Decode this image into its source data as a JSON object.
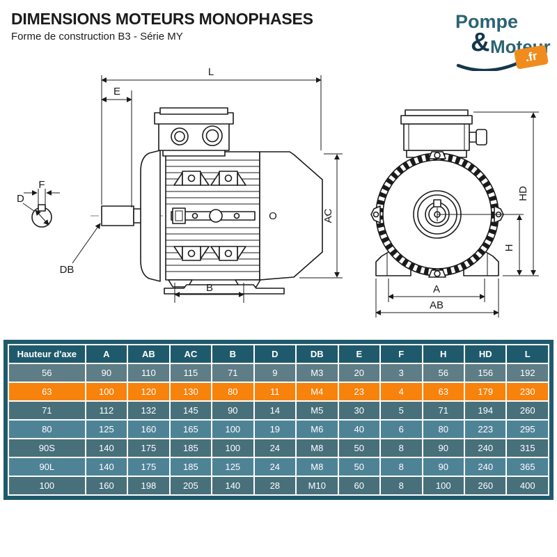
{
  "page": {
    "title": "DIMENSIONS MOTEURS MONOPHASES",
    "subtitle": "Forme de construction B3 - Série MY"
  },
  "logo": {
    "word1": "Pompe",
    "ampersand": "&",
    "word2": "Moteur",
    "tld": ".fr"
  },
  "side_view": {
    "labels": {
      "L": "L",
      "E": "E",
      "F": "F",
      "D": "D",
      "DB": "DB",
      "B": "B",
      "AC": "AC",
      "O": "O"
    }
  },
  "front_view": {
    "labels": {
      "HD": "HD",
      "H": "H",
      "A": "A",
      "AB": "AB"
    }
  },
  "table": {
    "columns": [
      "Hauteur d'axe",
      "A",
      "AB",
      "AC",
      "B",
      "D",
      "DB",
      "E",
      "F",
      "H",
      "HD",
      "L"
    ],
    "rows": [
      [
        "56",
        "90",
        "110",
        "115",
        "71",
        "9",
        "M3",
        "20",
        "3",
        "56",
        "156",
        "192"
      ],
      [
        "63",
        "100",
        "120",
        "130",
        "80",
        "11",
        "M4",
        "23",
        "4",
        "63",
        "179",
        "230"
      ],
      [
        "71",
        "112",
        "132",
        "145",
        "90",
        "14",
        "M5",
        "30",
        "5",
        "71",
        "194",
        "260"
      ],
      [
        "80",
        "125",
        "160",
        "165",
        "100",
        "19",
        "M6",
        "40",
        "6",
        "80",
        "223",
        "295"
      ],
      [
        "90S",
        "140",
        "175",
        "185",
        "100",
        "24",
        "M8",
        "50",
        "8",
        "90",
        "240",
        "315"
      ],
      [
        "90L",
        "140",
        "175",
        "185",
        "125",
        "24",
        "M8",
        "50",
        "8",
        "90",
        "240",
        "365"
      ],
      [
        "100",
        "160",
        "198",
        "205",
        "140",
        "28",
        "M10",
        "60",
        "8",
        "100",
        "260",
        "400"
      ]
    ],
    "row_styles": [
      "gray",
      "highlight",
      "dark",
      "light",
      "dark",
      "light",
      "dark"
    ],
    "highlighted_value": "63"
  },
  "colors": {
    "header_bg": "#1F5A6C",
    "row_gray": "#5E7D86",
    "row_dark": "#47707B",
    "row_light": "#4E8396",
    "highlight": "#F7820C",
    "logo_teal": "#2B6473",
    "logo_navy": "#14384D",
    "logo_orange": "#F08C1E",
    "line": "#1A1A1A"
  }
}
